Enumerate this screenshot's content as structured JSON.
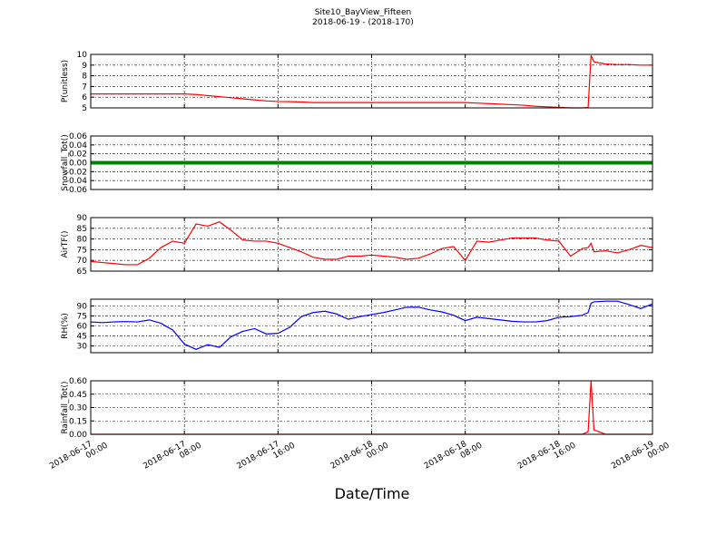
{
  "title": "Site10_BayView_Fifteen",
  "subtitle": "2018-06-19 - (2018-170)",
  "xlabel": "Date/Time",
  "xlim": [
    "2018-06-17 00:00",
    "2018-06-19 00:00"
  ],
  "xticks": [
    "2018-06-17 00:00",
    "2018-06-17 08:00",
    "2018-06-17 16:00",
    "2018-06-18 00:00",
    "2018-06-18 08:00",
    "2018-06-18 16:00",
    "2018-06-19 00:00"
  ],
  "x": [
    "2018-06-17 00:00",
    "2018-06-17 01:00",
    "2018-06-17 02:00",
    "2018-06-17 03:00",
    "2018-06-17 04:00",
    "2018-06-17 05:00",
    "2018-06-17 06:00",
    "2018-06-17 07:00",
    "2018-06-17 08:00",
    "2018-06-17 09:00",
    "2018-06-17 10:00",
    "2018-06-17 11:00",
    "2018-06-17 12:00",
    "2018-06-17 13:00",
    "2018-06-17 14:00",
    "2018-06-17 15:00",
    "2018-06-17 16:00",
    "2018-06-17 17:00",
    "2018-06-17 18:00",
    "2018-06-17 19:00",
    "2018-06-17 20:00",
    "2018-06-17 21:00",
    "2018-06-17 22:00",
    "2018-06-17 23:00",
    "2018-06-18 00:00",
    "2018-06-18 01:00",
    "2018-06-18 02:00",
    "2018-06-18 03:00",
    "2018-06-18 04:00",
    "2018-06-18 05:00",
    "2018-06-18 06:00",
    "2018-06-18 07:00",
    "2018-06-18 08:00",
    "2018-06-18 09:00",
    "2018-06-18 10:00",
    "2018-06-18 11:00",
    "2018-06-18 12:00",
    "2018-06-18 13:00",
    "2018-06-18 14:00",
    "2018-06-18 15:00",
    "2018-06-18 16:00",
    "2018-06-18 17:00",
    "2018-06-18 18:00",
    "2018-06-18 18:30",
    "2018-06-18 18:45",
    "2018-06-18 19:00",
    "2018-06-18 20:00",
    "2018-06-18 21:00",
    "2018-06-18 22:00",
    "2018-06-18 23:00",
    "2018-06-19 00:00"
  ],
  "chart_data": [
    {
      "type": "line",
      "ylabel": "P(unitless)",
      "color": "#ff0000",
      "ylim": [
        5,
        10
      ],
      "yticks": [
        5,
        6,
        7,
        8,
        9,
        10
      ],
      "values": [
        6.3,
        6.3,
        6.3,
        6.3,
        6.3,
        6.3,
        6.3,
        6.3,
        6.3,
        6.25,
        6.15,
        6.05,
        5.95,
        5.85,
        5.75,
        5.65,
        5.6,
        5.58,
        5.55,
        5.5,
        5.5,
        5.5,
        5.5,
        5.5,
        5.5,
        5.5,
        5.5,
        5.5,
        5.5,
        5.5,
        5.5,
        5.5,
        5.5,
        5.45,
        5.4,
        5.35,
        5.3,
        5.25,
        5.15,
        5.1,
        5.05,
        5.0,
        5.0,
        5.05,
        9.9,
        9.3,
        9.1,
        9.05,
        9.05,
        9.0,
        9.0
      ]
    },
    {
      "type": "line",
      "ylabel": "Snowfall_Tot()",
      "color": "#008000",
      "ylim": [
        -0.06,
        0.06
      ],
      "yticks": [
        -0.06,
        -0.04,
        -0.02,
        {
          "value": 0,
          "label": "0.00"
        },
        0.02,
        0.04,
        0.06
      ],
      "values": [
        0,
        0,
        0,
        0,
        0,
        0,
        0,
        0,
        0,
        0,
        0,
        0,
        0,
        0,
        0,
        0,
        0,
        0,
        0,
        0,
        0,
        0,
        0,
        0,
        0,
        0,
        0,
        0,
        0,
        0,
        0,
        0,
        0,
        0,
        0,
        0,
        0,
        0,
        0,
        0,
        0,
        0,
        0,
        0,
        0,
        0,
        0,
        0,
        0,
        0,
        0
      ]
    },
    {
      "type": "line",
      "ylabel": "AirTF()",
      "color": "#ff0000",
      "ylim": [
        65,
        90
      ],
      "yticks": [
        65,
        70,
        75,
        80,
        85,
        90
      ],
      "values": [
        69.5,
        69,
        68.5,
        68,
        68,
        71,
        76,
        79,
        78,
        87,
        86,
        88,
        84,
        79.5,
        79,
        79,
        78,
        76,
        74,
        71.5,
        70.5,
        70.5,
        72,
        72,
        72.5,
        72,
        71.5,
        70.5,
        71,
        73,
        75.5,
        76.5,
        70,
        79,
        78.5,
        79.5,
        80.5,
        80.5,
        80.5,
        79.5,
        79,
        72,
        75.5,
        76,
        78,
        74,
        74.5,
        73.5,
        75,
        77,
        76
      ]
    },
    {
      "type": "line",
      "ylabel": "RH(%)",
      "color": "#0000ff",
      "ylim": [
        20,
        100
      ],
      "yticks": [
        30,
        45,
        60,
        75,
        90
      ],
      "values": [
        66,
        65,
        66,
        66.5,
        66,
        69,
        64,
        54,
        33,
        25,
        32,
        28,
        44,
        52,
        56,
        48,
        49,
        58,
        74,
        80,
        82,
        78,
        70,
        74,
        77,
        80,
        84,
        88,
        88,
        84,
        81,
        76,
        68,
        73,
        71,
        69,
        67,
        66,
        66,
        68,
        73,
        74,
        76,
        80,
        94,
        96,
        97,
        97,
        92,
        86,
        93
      ]
    },
    {
      "type": "line",
      "ylabel": "Rainfall_Tot()",
      "color": "#ff0000",
      "ylim": [
        0,
        0.6
      ],
      "yticks": [
        {
          "value": 0,
          "label": "0.00"
        },
        0.15,
        {
          "value": 0.3,
          "label": "0.30"
        },
        0.45,
        {
          "value": 0.6,
          "label": "0.60"
        }
      ],
      "values": [
        0,
        0,
        0,
        0,
        0,
        0,
        0,
        0,
        0,
        0,
        0,
        0,
        0,
        0,
        0,
        0,
        0,
        0,
        0,
        0,
        0,
        0,
        0,
        0,
        0,
        0,
        0,
        0,
        0,
        0,
        0,
        0,
        0,
        0,
        0,
        0,
        0,
        0,
        0,
        0,
        0,
        0,
        0,
        0.03,
        0.6,
        0.05,
        0,
        0,
        0,
        0,
        0
      ]
    }
  ]
}
